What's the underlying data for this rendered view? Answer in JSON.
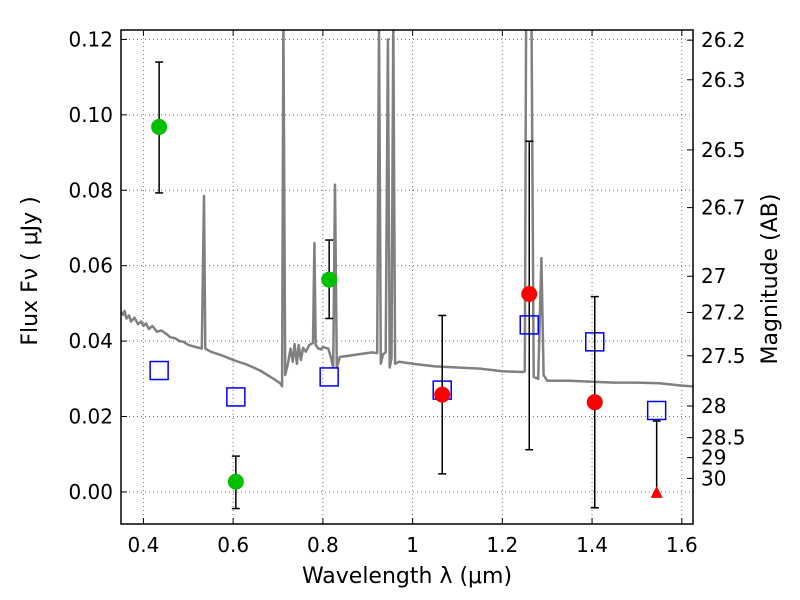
{
  "chart_data": {
    "type": "scatter",
    "title": "",
    "xlabel": "Wavelength  λ (μm)",
    "ylabel": "Flux  Fν  ( μJy )",
    "ylabel_right": "Magnitude (AB)",
    "xlim": [
      0.35,
      1.625
    ],
    "ylim": [
      -0.0085,
      0.1225
    ],
    "grid": true,
    "x_ticks": [
      0.4,
      0.6,
      0.8,
      1.0,
      1.2,
      1.4,
      1.6
    ],
    "x_tick_labels": [
      "0.4",
      "0.6",
      "0.8",
      "1",
      "1.2",
      "1.4",
      "1.6"
    ],
    "y_ticks": [
      0.0,
      0.02,
      0.04,
      0.06,
      0.08,
      0.1,
      0.12
    ],
    "y_tick_labels": [
      "0.00",
      "0.02",
      "0.04",
      "0.06",
      "0.08",
      "0.10",
      "0.12"
    ],
    "right_ticks": [
      {
        "label": "26.2",
        "flux": 0.1198
      },
      {
        "label": "26.3",
        "flux": 0.1093
      },
      {
        "label": "26.5",
        "flux": 0.0907
      },
      {
        "label": "26.7",
        "flux": 0.0754
      },
      {
        "label": "27",
        "flux": 0.0572
      },
      {
        "label": "27.2",
        "flux": 0.0476
      },
      {
        "label": "27.5",
        "flux": 0.0361
      },
      {
        "label": "28",
        "flux": 0.0228
      },
      {
        "label": "28.5",
        "flux": 0.0144
      },
      {
        "label": "29",
        "flux": 0.0091
      },
      {
        "label": "30",
        "flux": 0.0036
      }
    ],
    "colors": {
      "sed": "#808080",
      "green_points": "#00c000",
      "red_points": "#ff0000",
      "model_squares": "#0000ff",
      "errorbar": "#000000"
    },
    "series": [
      {
        "marker": "circle",
        "color": "green",
        "points": [
          {
            "x": 0.435,
            "y": 0.0968,
            "yerr_low": 0.0793,
            "yerr_high": 0.114
          },
          {
            "x": 0.606,
            "y": 0.0027,
            "yerr_low": -0.0044,
            "yerr_high": 0.0095
          },
          {
            "x": 0.814,
            "y": 0.0563,
            "yerr_low": 0.046,
            "yerr_high": 0.0668
          }
        ]
      },
      {
        "marker": "circle",
        "color": "red",
        "points": [
          {
            "x": 1.066,
            "y": 0.0258,
            "yerr_low": 0.0048,
            "yerr_high": 0.0468
          },
          {
            "x": 1.26,
            "y": 0.0525,
            "yerr_low": 0.0112,
            "yerr_high": 0.093
          },
          {
            "x": 1.406,
            "y": 0.0238,
            "yerr_low": -0.0042,
            "yerr_high": 0.0518
          }
        ]
      },
      {
        "marker": "triangle",
        "color": "red",
        "points": [
          {
            "x": 1.544,
            "y": -0.0005,
            "yerr_low": -0.0005,
            "yerr_high": 0.0188
          }
        ]
      },
      {
        "marker": "square-open",
        "color": "blue",
        "points": [
          {
            "x": 0.435,
            "y": 0.0322
          },
          {
            "x": 0.606,
            "y": 0.0252
          },
          {
            "x": 0.814,
            "y": 0.0305
          },
          {
            "x": 1.066,
            "y": 0.027
          },
          {
            "x": 1.26,
            "y": 0.0443
          },
          {
            "x": 1.406,
            "y": 0.0398
          },
          {
            "x": 1.544,
            "y": 0.0216
          }
        ]
      }
    ],
    "sed_curve": [
      [
        0.35,
        0.0478
      ],
      [
        0.355,
        0.047
      ],
      [
        0.358,
        0.048
      ],
      [
        0.362,
        0.046
      ],
      [
        0.368,
        0.0468
      ],
      [
        0.372,
        0.0452
      ],
      [
        0.38,
        0.0462
      ],
      [
        0.388,
        0.0445
      ],
      [
        0.395,
        0.0452
      ],
      [
        0.4,
        0.044
      ],
      [
        0.406,
        0.0447
      ],
      [
        0.412,
        0.0432
      ],
      [
        0.42,
        0.044
      ],
      [
        0.43,
        0.0425
      ],
      [
        0.44,
        0.0428
      ],
      [
        0.45,
        0.042
      ],
      [
        0.46,
        0.041
      ],
      [
        0.47,
        0.0408
      ],
      [
        0.48,
        0.04
      ],
      [
        0.49,
        0.0398
      ],
      [
        0.5,
        0.039
      ],
      [
        0.515,
        0.0385
      ],
      [
        0.53,
        0.038
      ],
      [
        0.535,
        0.0785
      ],
      [
        0.538,
        0.038
      ],
      [
        0.55,
        0.0372
      ],
      [
        0.575,
        0.0362
      ],
      [
        0.6,
        0.035
      ],
      [
        0.63,
        0.0338
      ],
      [
        0.66,
        0.0322
      ],
      [
        0.69,
        0.03
      ],
      [
        0.705,
        0.0288
      ],
      [
        0.709,
        0.028
      ],
      [
        0.712,
        0.125
      ],
      [
        0.716,
        0.031
      ],
      [
        0.722,
        0.034
      ],
      [
        0.728,
        0.038
      ],
      [
        0.733,
        0.0345
      ],
      [
        0.737,
        0.0392
      ],
      [
        0.742,
        0.034
      ],
      [
        0.746,
        0.039
      ],
      [
        0.751,
        0.035
      ],
      [
        0.756,
        0.0382
      ],
      [
        0.762,
        0.0372
      ],
      [
        0.77,
        0.039
      ],
      [
        0.778,
        0.0395
      ],
      [
        0.781,
        0.066
      ],
      [
        0.784,
        0.039
      ],
      [
        0.79,
        0.038
      ],
      [
        0.796,
        0.0378
      ],
      [
        0.8,
        0.0385
      ],
      [
        0.806,
        0.0382
      ],
      [
        0.812,
        0.038
      ],
      [
        0.818,
        0.0356
      ],
      [
        0.823,
        0.033
      ],
      [
        0.827,
        0.0815
      ],
      [
        0.831,
        0.033
      ],
      [
        0.838,
        0.0358
      ],
      [
        0.85,
        0.036
      ],
      [
        0.88,
        0.0365
      ],
      [
        0.91,
        0.037
      ],
      [
        0.921,
        0.0368
      ],
      [
        0.925,
        0.125
      ],
      [
        0.929,
        0.034
      ],
      [
        0.934,
        0.0365
      ],
      [
        0.94,
        0.037
      ],
      [
        0.945,
        0.12
      ],
      [
        0.949,
        0.033
      ],
      [
        0.953,
        0.0355
      ],
      [
        0.957,
        0.125
      ],
      [
        0.961,
        0.034
      ],
      [
        0.97,
        0.0345
      ],
      [
        1.0,
        0.034
      ],
      [
        1.05,
        0.0333
      ],
      [
        1.1,
        0.033
      ],
      [
        1.15,
        0.0327
      ],
      [
        1.2,
        0.032
      ],
      [
        1.245,
        0.0318
      ],
      [
        1.25,
        0.032
      ],
      [
        1.253,
        0.125
      ],
      [
        1.265,
        0.125
      ],
      [
        1.27,
        0.0305
      ],
      [
        1.28,
        0.03
      ],
      [
        1.287,
        0.062
      ],
      [
        1.292,
        0.031
      ],
      [
        1.3,
        0.0295
      ],
      [
        1.35,
        0.0295
      ],
      [
        1.4,
        0.0292
      ],
      [
        1.45,
        0.029
      ],
      [
        1.5,
        0.029
      ],
      [
        1.55,
        0.0288
      ],
      [
        1.6,
        0.0282
      ],
      [
        1.625,
        0.028
      ]
    ]
  }
}
